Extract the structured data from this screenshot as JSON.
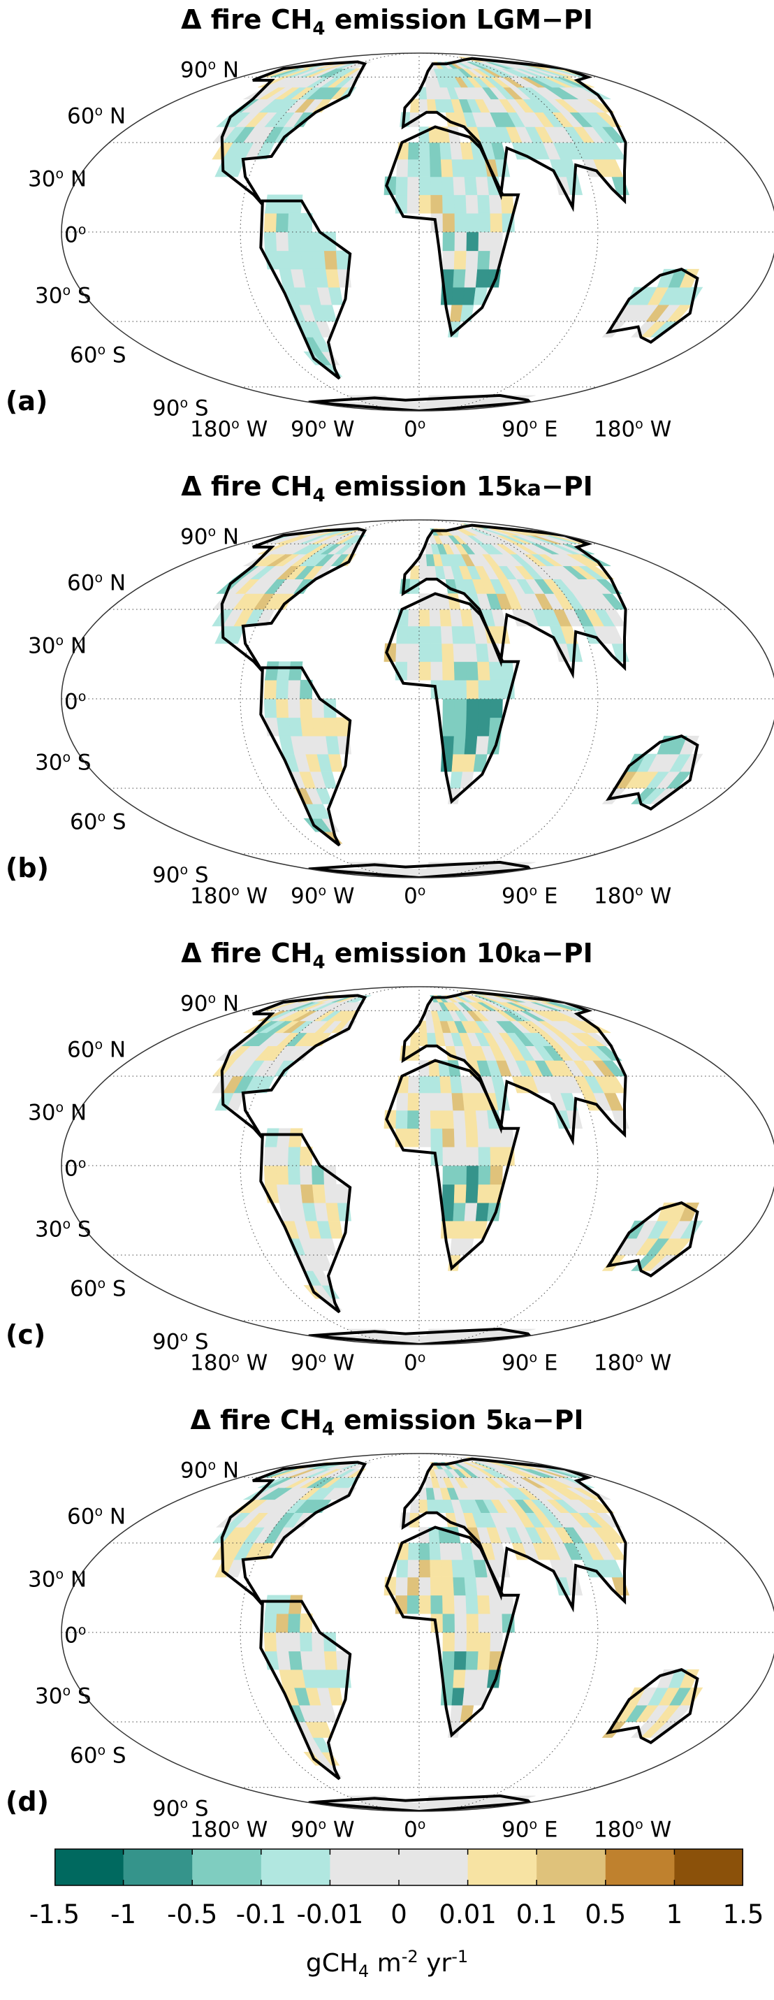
{
  "panels": [
    {
      "letter": "(a)",
      "title_prefix": "Δ fire CH",
      "title_sub": "4",
      "title_mid": " emission ",
      "title_period": "LGM",
      "title_ka": "",
      "title_suffix": "−PI"
    },
    {
      "letter": "(b)",
      "title_prefix": "Δ fire CH",
      "title_sub": "4",
      "title_mid": " emission ",
      "title_period": "15",
      "title_ka": "ka",
      "title_suffix": "−PI"
    },
    {
      "letter": "(c)",
      "title_prefix": "Δ fire CH",
      "title_sub": "4",
      "title_mid": " emission ",
      "title_period": "10",
      "title_ka": "ka",
      "title_suffix": "−PI"
    },
    {
      "letter": "(d)",
      "title_prefix": "Δ fire CH",
      "title_sub": "4",
      "title_mid": " emission ",
      "title_period": "5",
      "title_ka": "ka",
      "title_suffix": "−PI"
    }
  ],
  "axes": {
    "lat_labels": [
      {
        "num": "90",
        "deg": "o",
        "dir": " N"
      },
      {
        "num": "60",
        "deg": "o",
        "dir": " N"
      },
      {
        "num": "30",
        "deg": "o",
        "dir": " N"
      },
      {
        "num": "0",
        "deg": "o",
        "dir": ""
      },
      {
        "num": "30",
        "deg": "o",
        "dir": " S"
      },
      {
        "num": "60",
        "deg": "o",
        "dir": " S"
      },
      {
        "num": "90",
        "deg": "o",
        "dir": " S"
      }
    ],
    "lon_labels": [
      {
        "num": "180",
        "deg": "o",
        "dir": " W"
      },
      {
        "num": "90",
        "deg": "o",
        "dir": " W"
      },
      {
        "num": "0",
        "deg": "o",
        "dir": ""
      },
      {
        "num": "90",
        "deg": "o",
        "dir": " E"
      },
      {
        "num": "180",
        "deg": "o",
        "dir": " W"
      }
    ]
  },
  "colorbar": {
    "ticks": [
      "-1.5",
      "-1",
      "-0.5",
      "-0.1",
      "-0.01",
      "0",
      "0.01",
      "0.1",
      "0.5",
      "1",
      "1.5"
    ],
    "colors": [
      "#00695f",
      "#35948b",
      "#7fcdc0",
      "#b1e7e0",
      "#e6e6e6",
      "#e6e6e6",
      "#f7e3a3",
      "#dfc27b",
      "#bf812e",
      "#8b510a"
    ],
    "unit_base": "gCH",
    "unit_sub": "4",
    "unit_m": " m",
    "unit_m_exp": "-2",
    "unit_yr": " yr",
    "unit_yr_exp": "-1"
  }
}
